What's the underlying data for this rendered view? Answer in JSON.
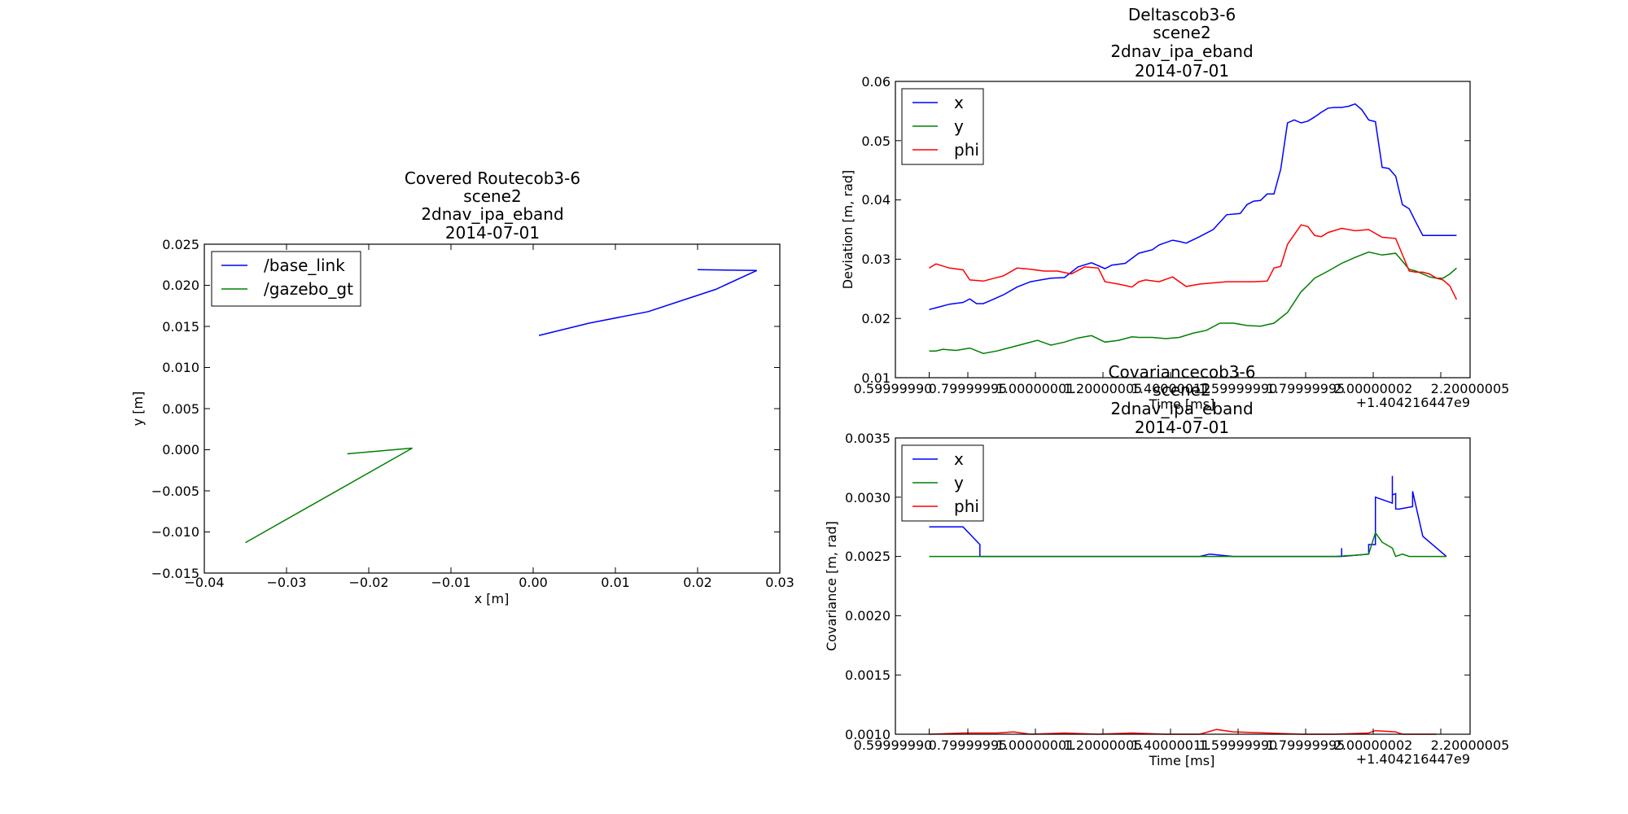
{
  "chart_data": [
    {
      "type": "line",
      "title_lines": [
        "Covered Routecob3-6",
        "scene2",
        "2dnav_ipa_eband",
        "2014-07-01"
      ],
      "xlabel": "x [m]",
      "ylabel": "y [m]",
      "xlim": [
        -0.04,
        0.03
      ],
      "ylim": [
        -0.015,
        0.025
      ],
      "xticks": [
        "−0.04",
        "−0.03",
        "−0.02",
        "−0.01",
        "0.00",
        "0.01",
        "0.02",
        "0.03"
      ],
      "xtick_values": [
        -0.04,
        -0.03,
        -0.02,
        -0.01,
        0.0,
        0.01,
        0.02,
        0.03
      ],
      "yticks": [
        "−0.015",
        "−0.010",
        "−0.005",
        "0.000",
        "0.005",
        "0.010",
        "0.015",
        "0.020",
        "0.025"
      ],
      "ytick_values": [
        -0.015,
        -0.01,
        -0.005,
        0.0,
        0.005,
        0.01,
        0.015,
        0.02,
        0.025
      ],
      "grid": false,
      "legend_position": "top-left",
      "series": [
        {
          "name": "/base_link",
          "color": "#0000ff",
          "x": [
            0.0007,
            0.0068,
            0.014,
            0.0222,
            0.0272,
            0.02
          ],
          "y": [
            0.0139,
            0.0154,
            0.0168,
            0.0195,
            0.0218,
            0.0219
          ]
        },
        {
          "name": "/gazebo_gt",
          "color": "#008000",
          "x": [
            -0.035,
            -0.0147,
            -0.0226
          ],
          "y": [
            -0.0113,
            0.0002,
            -0.0005
          ]
        }
      ]
    },
    {
      "type": "line",
      "title_lines": [
        "Deltascob3-6",
        "scene2",
        "2dnav_ipa_eband",
        "2014-07-01"
      ],
      "xlabel": "Time [ms]",
      "ylabel": "Deviation [m, rad]",
      "xlim": [
        0.5,
        2.2
      ],
      "ylim": [
        0.01,
        0.06
      ],
      "xticks": [
        "0.59999990",
        "0.79999995",
        "1.00000001",
        "1.20000005",
        "1.40000011",
        "1.59999990",
        "1.79999995",
        "2.00000002",
        "2.20000005"
      ],
      "xtick_values": [
        0.6,
        0.8,
        1.0,
        1.2,
        1.4,
        1.6,
        1.8,
        2.0,
        2.2
      ],
      "x_offset_label": "+1.404216447e9",
      "yticks": [
        "0.01",
        "0.02",
        "0.03",
        "0.04",
        "0.05",
        "0.06"
      ],
      "ytick_values": [
        0.01,
        0.02,
        0.03,
        0.04,
        0.05,
        0.06
      ],
      "grid": false,
      "legend_position": "top-left",
      "series": [
        {
          "name": "x",
          "color": "#0000ff",
          "x": [
            0.6,
            0.62,
            0.66,
            0.7,
            0.72,
            0.74,
            0.76,
            0.78,
            0.82,
            0.86,
            0.9,
            0.96,
            1.0,
            1.04,
            1.08,
            1.12,
            1.14,
            1.18,
            1.22,
            1.26,
            1.28,
            1.32,
            1.34,
            1.36,
            1.4,
            1.44,
            1.48,
            1.52,
            1.54,
            1.56,
            1.58,
            1.6,
            1.62,
            1.64,
            1.66,
            1.68,
            1.7,
            1.72,
            1.74,
            1.76,
            1.78,
            1.8,
            1.82,
            1.84,
            1.86,
            1.88,
            1.9,
            1.92,
            1.94,
            1.96,
            1.98,
            2.0,
            2.02,
            2.04,
            2.06,
            2.08,
            2.1,
            2.12,
            2.14,
            2.16
          ],
          "y": [
            0.0215,
            0.0218,
            0.0224,
            0.0227,
            0.0233,
            0.0225,
            0.0225,
            0.023,
            0.024,
            0.0253,
            0.0262,
            0.0268,
            0.0269,
            0.0287,
            0.0294,
            0.0284,
            0.029,
            0.0293,
            0.031,
            0.0316,
            0.0324,
            0.0332,
            0.033,
            0.0327,
            0.0338,
            0.035,
            0.0375,
            0.0377,
            0.0392,
            0.0398,
            0.0399,
            0.041,
            0.041,
            0.0452,
            0.053,
            0.0535,
            0.053,
            0.0533,
            0.054,
            0.0548,
            0.0555,
            0.0556,
            0.0556,
            0.0558,
            0.0562,
            0.0552,
            0.0535,
            0.0532,
            0.0455,
            0.0453,
            0.044,
            0.0392,
            0.0385,
            0.0362,
            0.034,
            0.034,
            0.034,
            0.034,
            0.034,
            0.034
          ]
        },
        {
          "name": "y",
          "color": "#008000",
          "x": [
            0.6,
            0.62,
            0.64,
            0.68,
            0.72,
            0.76,
            0.8,
            0.84,
            0.88,
            0.92,
            0.96,
            1.0,
            1.04,
            1.08,
            1.12,
            1.16,
            1.2,
            1.22,
            1.26,
            1.3,
            1.34,
            1.38,
            1.42,
            1.46,
            1.5,
            1.54,
            1.58,
            1.62,
            1.66,
            1.7,
            1.72,
            1.74,
            1.78,
            1.82,
            1.86,
            1.9,
            1.94,
            1.98,
            2.02,
            2.04,
            2.06,
            2.08,
            2.1,
            2.12,
            2.14,
            2.16
          ],
          "y": [
            0.0145,
            0.0145,
            0.0148,
            0.0146,
            0.015,
            0.0141,
            0.0145,
            0.0151,
            0.0157,
            0.0163,
            0.0155,
            0.016,
            0.0167,
            0.0171,
            0.016,
            0.0163,
            0.0169,
            0.0168,
            0.0168,
            0.0166,
            0.0168,
            0.0175,
            0.018,
            0.0192,
            0.0192,
            0.0188,
            0.0187,
            0.0192,
            0.021,
            0.0245,
            0.0256,
            0.0268,
            0.028,
            0.0293,
            0.0303,
            0.0312,
            0.0307,
            0.031,
            0.0283,
            0.028,
            0.0275,
            0.027,
            0.0268,
            0.0268,
            0.0275,
            0.0285
          ]
        },
        {
          "name": "phi",
          "color": "#ff0000",
          "x": [
            0.6,
            0.62,
            0.66,
            0.7,
            0.72,
            0.76,
            0.82,
            0.86,
            0.9,
            0.94,
            0.98,
            1.02,
            1.06,
            1.1,
            1.12,
            1.16,
            1.2,
            1.22,
            1.24,
            1.28,
            1.32,
            1.36,
            1.4,
            1.44,
            1.48,
            1.52,
            1.56,
            1.6,
            1.62,
            1.64,
            1.66,
            1.7,
            1.72,
            1.74,
            1.76,
            1.78,
            1.82,
            1.86,
            1.9,
            1.94,
            1.98,
            2.02,
            2.04,
            2.06,
            2.08,
            2.1,
            2.12,
            2.14,
            2.16
          ],
          "y": [
            0.0285,
            0.0292,
            0.0285,
            0.0282,
            0.0265,
            0.0263,
            0.0272,
            0.0285,
            0.0283,
            0.028,
            0.028,
            0.0275,
            0.0287,
            0.0285,
            0.0262,
            0.0258,
            0.0253,
            0.0262,
            0.0265,
            0.0262,
            0.027,
            0.0254,
            0.0258,
            0.026,
            0.0262,
            0.0262,
            0.0262,
            0.0263,
            0.0285,
            0.0288,
            0.0325,
            0.0358,
            0.0355,
            0.034,
            0.0338,
            0.0345,
            0.0352,
            0.0348,
            0.035,
            0.0337,
            0.0335,
            0.028,
            0.0278,
            0.0278,
            0.0275,
            0.0268,
            0.0265,
            0.0255,
            0.0232
          ]
        }
      ]
    },
    {
      "type": "line",
      "title_lines": [
        "Covariancecob3-6",
        "scene2",
        "2dnav_ipa_eband",
        "2014-07-01"
      ],
      "xlabel": "Time [ms]",
      "ylabel": "Covariance [m, rad]",
      "xlim": [
        0.5,
        2.2
      ],
      "ylim": [
        0.001,
        0.0035
      ],
      "xticks": [
        "0.59999990",
        "0.79999995",
        "1.00000001",
        "1.20000005",
        "1.40000011",
        "1.59999990",
        "1.79999995",
        "2.00000002",
        "2.20000005"
      ],
      "xtick_values": [
        0.6,
        0.8,
        1.0,
        1.2,
        1.4,
        1.6,
        1.8,
        2.0,
        2.2
      ],
      "x_offset_label": "+1.404216447e9",
      "yticks": [
        "0.0010",
        "0.0015",
        "0.0020",
        "0.0025",
        "0.0030",
        "0.0035"
      ],
      "ytick_values": [
        0.001,
        0.0015,
        0.002,
        0.0025,
        0.003,
        0.0035
      ],
      "grid": false,
      "legend_position": "top-left",
      "series": [
        {
          "name": "x",
          "color": "#0000ff",
          "x": [
            0.6,
            0.66,
            0.7,
            0.75,
            0.75,
            0.8,
            0.85,
            0.9,
            1.0,
            1.1,
            1.2,
            1.3,
            1.4,
            1.43,
            1.5,
            1.6,
            1.7,
            1.8,
            1.82,
            1.82,
            1.82,
            1.9,
            1.9,
            1.92,
            1.92,
            1.95,
            1.97,
            1.97,
            1.97,
            1.98,
            1.98,
            1.99,
            2.03,
            2.03,
            2.06,
            2.13
          ],
          "y": [
            0.00275,
            0.00275,
            0.00275,
            0.0026,
            0.0025,
            0.0025,
            0.0025,
            0.0025,
            0.0025,
            0.0025,
            0.0025,
            0.0025,
            0.0025,
            0.00252,
            0.0025,
            0.0025,
            0.0025,
            0.0025,
            0.0025,
            0.00257,
            0.0025,
            0.00252,
            0.0026,
            0.0026,
            0.003,
            0.00297,
            0.00295,
            0.00318,
            0.00302,
            0.00303,
            0.0029,
            0.0029,
            0.00292,
            0.00305,
            0.00267,
            0.0025
          ]
        },
        {
          "name": "y",
          "color": "#008000",
          "x": [
            0.6,
            0.7,
            0.8,
            0.9,
            1.0,
            1.1,
            1.2,
            1.3,
            1.4,
            1.5,
            1.6,
            1.7,
            1.8,
            1.86,
            1.9,
            1.92,
            1.94,
            1.97,
            1.98,
            2.0,
            2.02,
            2.05,
            2.13
          ],
          "y": [
            0.0025,
            0.0025,
            0.0025,
            0.0025,
            0.0025,
            0.0025,
            0.0025,
            0.0025,
            0.0025,
            0.0025,
            0.0025,
            0.0025,
            0.0025,
            0.00251,
            0.00252,
            0.0027,
            0.00262,
            0.00257,
            0.0025,
            0.00252,
            0.0025,
            0.0025,
            0.0025
          ]
        },
        {
          "name": "phi",
          "color": "#ff0000",
          "x": [
            0.6,
            0.7,
            0.8,
            0.85,
            0.9,
            1.0,
            1.1,
            1.2,
            1.3,
            1.4,
            1.45,
            1.5,
            1.6,
            1.7,
            1.8,
            1.9,
            1.92,
            1.98,
            2.0,
            2.1
          ],
          "y": [
            0.001,
            0.00101,
            0.00101,
            0.00102,
            0.001,
            0.00101,
            0.001,
            0.00101,
            0.001,
            0.001,
            0.00104,
            0.00102,
            0.00101,
            0.001,
            0.001,
            0.00101,
            0.00103,
            0.00102,
            0.001,
            0.001
          ]
        }
      ]
    }
  ]
}
